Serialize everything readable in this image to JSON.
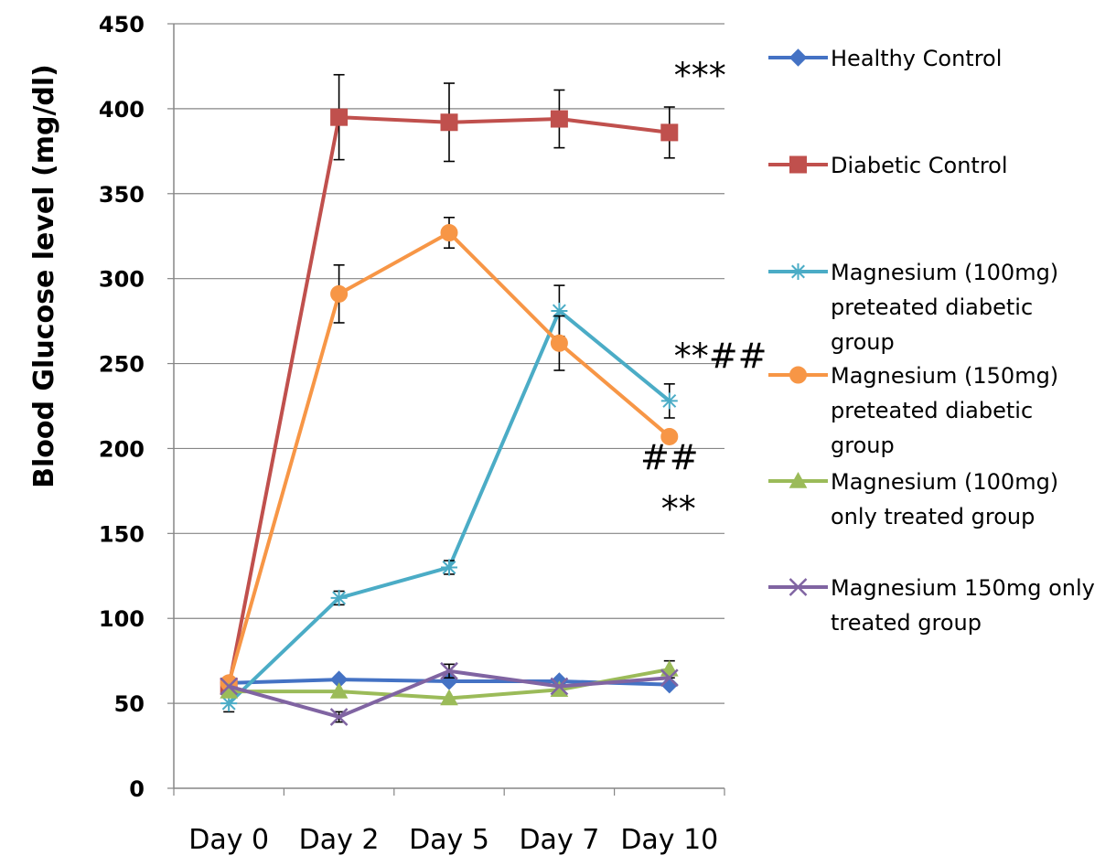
{
  "chart_data": {
    "type": "line",
    "title": "",
    "xlabel": "",
    "ylabel": "Blood Glucose level (mg/dl)",
    "ylim": [
      0,
      450
    ],
    "yticks": [
      0,
      50,
      100,
      150,
      200,
      250,
      300,
      350,
      400,
      450
    ],
    "grid": "horizontal",
    "legend_position": "right",
    "categories": [
      "Day 0",
      "Day 2",
      "Day 5",
      "Day 7",
      "Day 10"
    ],
    "series": [
      {
        "name": "Healthy Control",
        "legend_lines": [
          "Healthy Control"
        ],
        "marker": "diamond",
        "color": "#4472C4",
        "values": [
          62,
          64,
          63,
          63,
          61
        ],
        "errors": [
          0,
          0,
          0,
          0,
          0
        ]
      },
      {
        "name": "Diabetic Control",
        "legend_lines": [
          "Diabetic Control"
        ],
        "marker": "square",
        "color": "#C0504D",
        "values": [
          60,
          395,
          392,
          394,
          386
        ],
        "errors": [
          0,
          25,
          23,
          17,
          15
        ]
      },
      {
        "name": "Magnesium (100mg) preteated diabetic group",
        "legend_lines": [
          "Magnesium (100mg)",
          "preteated diabetic",
          "group"
        ],
        "marker": "star",
        "color": "#4BACC6",
        "values": [
          50,
          112,
          130,
          281,
          228
        ],
        "errors": [
          5,
          4,
          4,
          15,
          10
        ]
      },
      {
        "name": "Magnesium (150mg) preteated  diabetic group",
        "legend_lines": [
          "Magnesium (150mg)",
          "preteated  diabetic",
          "group"
        ],
        "marker": "circle",
        "color": "#F79646",
        "values": [
          62,
          291,
          327,
          262,
          207
        ],
        "errors": [
          0,
          17,
          9,
          16,
          0
        ]
      },
      {
        "name": "Magnesium (100mg) only treated group",
        "legend_lines": [
          "Magnesium (100mg)",
          "only treated group"
        ],
        "marker": "triangle",
        "color": "#9BBB59",
        "values": [
          57,
          57,
          53,
          58,
          70
        ],
        "errors": [
          0,
          0,
          0,
          0,
          5
        ]
      },
      {
        "name": "Magnesium 150mg only treated group",
        "legend_lines": [
          "Magnesium 150mg only",
          "treated group"
        ],
        "marker": "x",
        "color": "#8064A2",
        "values": [
          60,
          42,
          69,
          60,
          65
        ],
        "errors": [
          0,
          3,
          4,
          0,
          0
        ]
      }
    ],
    "annotations": [
      {
        "text": "***",
        "category": "Day 10",
        "y": 420
      },
      {
        "text": "**##",
        "category": "Day 10",
        "y": 255
      },
      {
        "text": "##",
        "category": "Day 10",
        "y": 195
      },
      {
        "text": "**",
        "category": "Day 10",
        "y": 165
      }
    ]
  }
}
